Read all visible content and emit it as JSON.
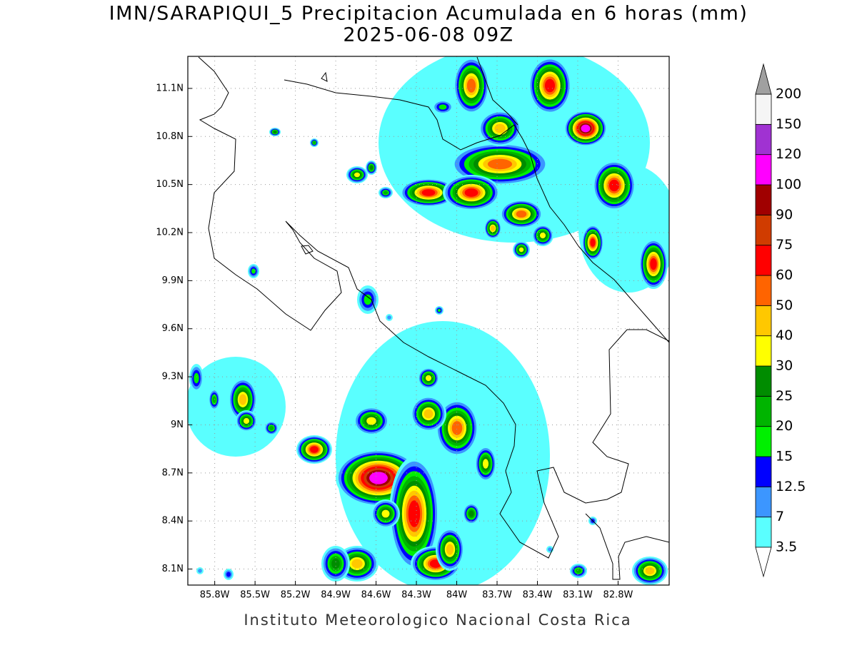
{
  "map": {
    "title": "IMN/SARAPIQUI_5 Precipitacion Acumulada en 6 horas (mm)",
    "subtitle": "2025-06-08 09Z",
    "footer": "Instituto Meteorologico Nacional Costa Rica",
    "lonlim": [
      -86.0,
      -82.42
    ],
    "latlim": [
      8.0,
      11.3
    ],
    "lon_ticks": [
      {
        "value": -85.8,
        "label": "85.8W"
      },
      {
        "value": -85.5,
        "label": "85.5W"
      },
      {
        "value": -85.2,
        "label": "85.2W"
      },
      {
        "value": -84.9,
        "label": "84.9W"
      },
      {
        "value": -84.6,
        "label": "84.6W"
      },
      {
        "value": -84.3,
        "label": "84.3W"
      },
      {
        "value": -84.0,
        "label": "84W"
      },
      {
        "value": -83.7,
        "label": "83.7W"
      },
      {
        "value": -83.4,
        "label": "83.4W"
      },
      {
        "value": -83.1,
        "label": "83.1W"
      },
      {
        "value": -82.8,
        "label": "82.8W"
      }
    ],
    "lat_ticks": [
      {
        "value": 8.1,
        "label": "8.1N"
      },
      {
        "value": 8.4,
        "label": "8.4N"
      },
      {
        "value": 8.7,
        "label": "8.7N"
      },
      {
        "value": 9.0,
        "label": "9N"
      },
      {
        "value": 9.3,
        "label": "9.3N"
      },
      {
        "value": 9.6,
        "label": "9.6N"
      },
      {
        "value": 9.9,
        "label": "9.9N"
      },
      {
        "value": 10.2,
        "label": "10.2N"
      },
      {
        "value": 10.5,
        "label": "10.5N"
      },
      {
        "value": 10.8,
        "label": "10.8N"
      },
      {
        "value": 11.1,
        "label": "11.1N"
      }
    ],
    "colorbar": {
      "levels": [
        3.5,
        7,
        12.5,
        15,
        20,
        25,
        30,
        40,
        50,
        60,
        75,
        90,
        100,
        120,
        150,
        200
      ],
      "colors": [
        "#5affff",
        "#3c96ff",
        "#0000ff",
        "#00f000",
        "#00b400",
        "#008c00",
        "#ffff00",
        "#ffc800",
        "#ff6400",
        "#ff0000",
        "#d03c00",
        "#a00000",
        "#ff00ff",
        "#a032d2",
        "#f5f5f5"
      ],
      "over_color": "#a0a0a0",
      "under_color": "#ffffff"
    }
  }
}
